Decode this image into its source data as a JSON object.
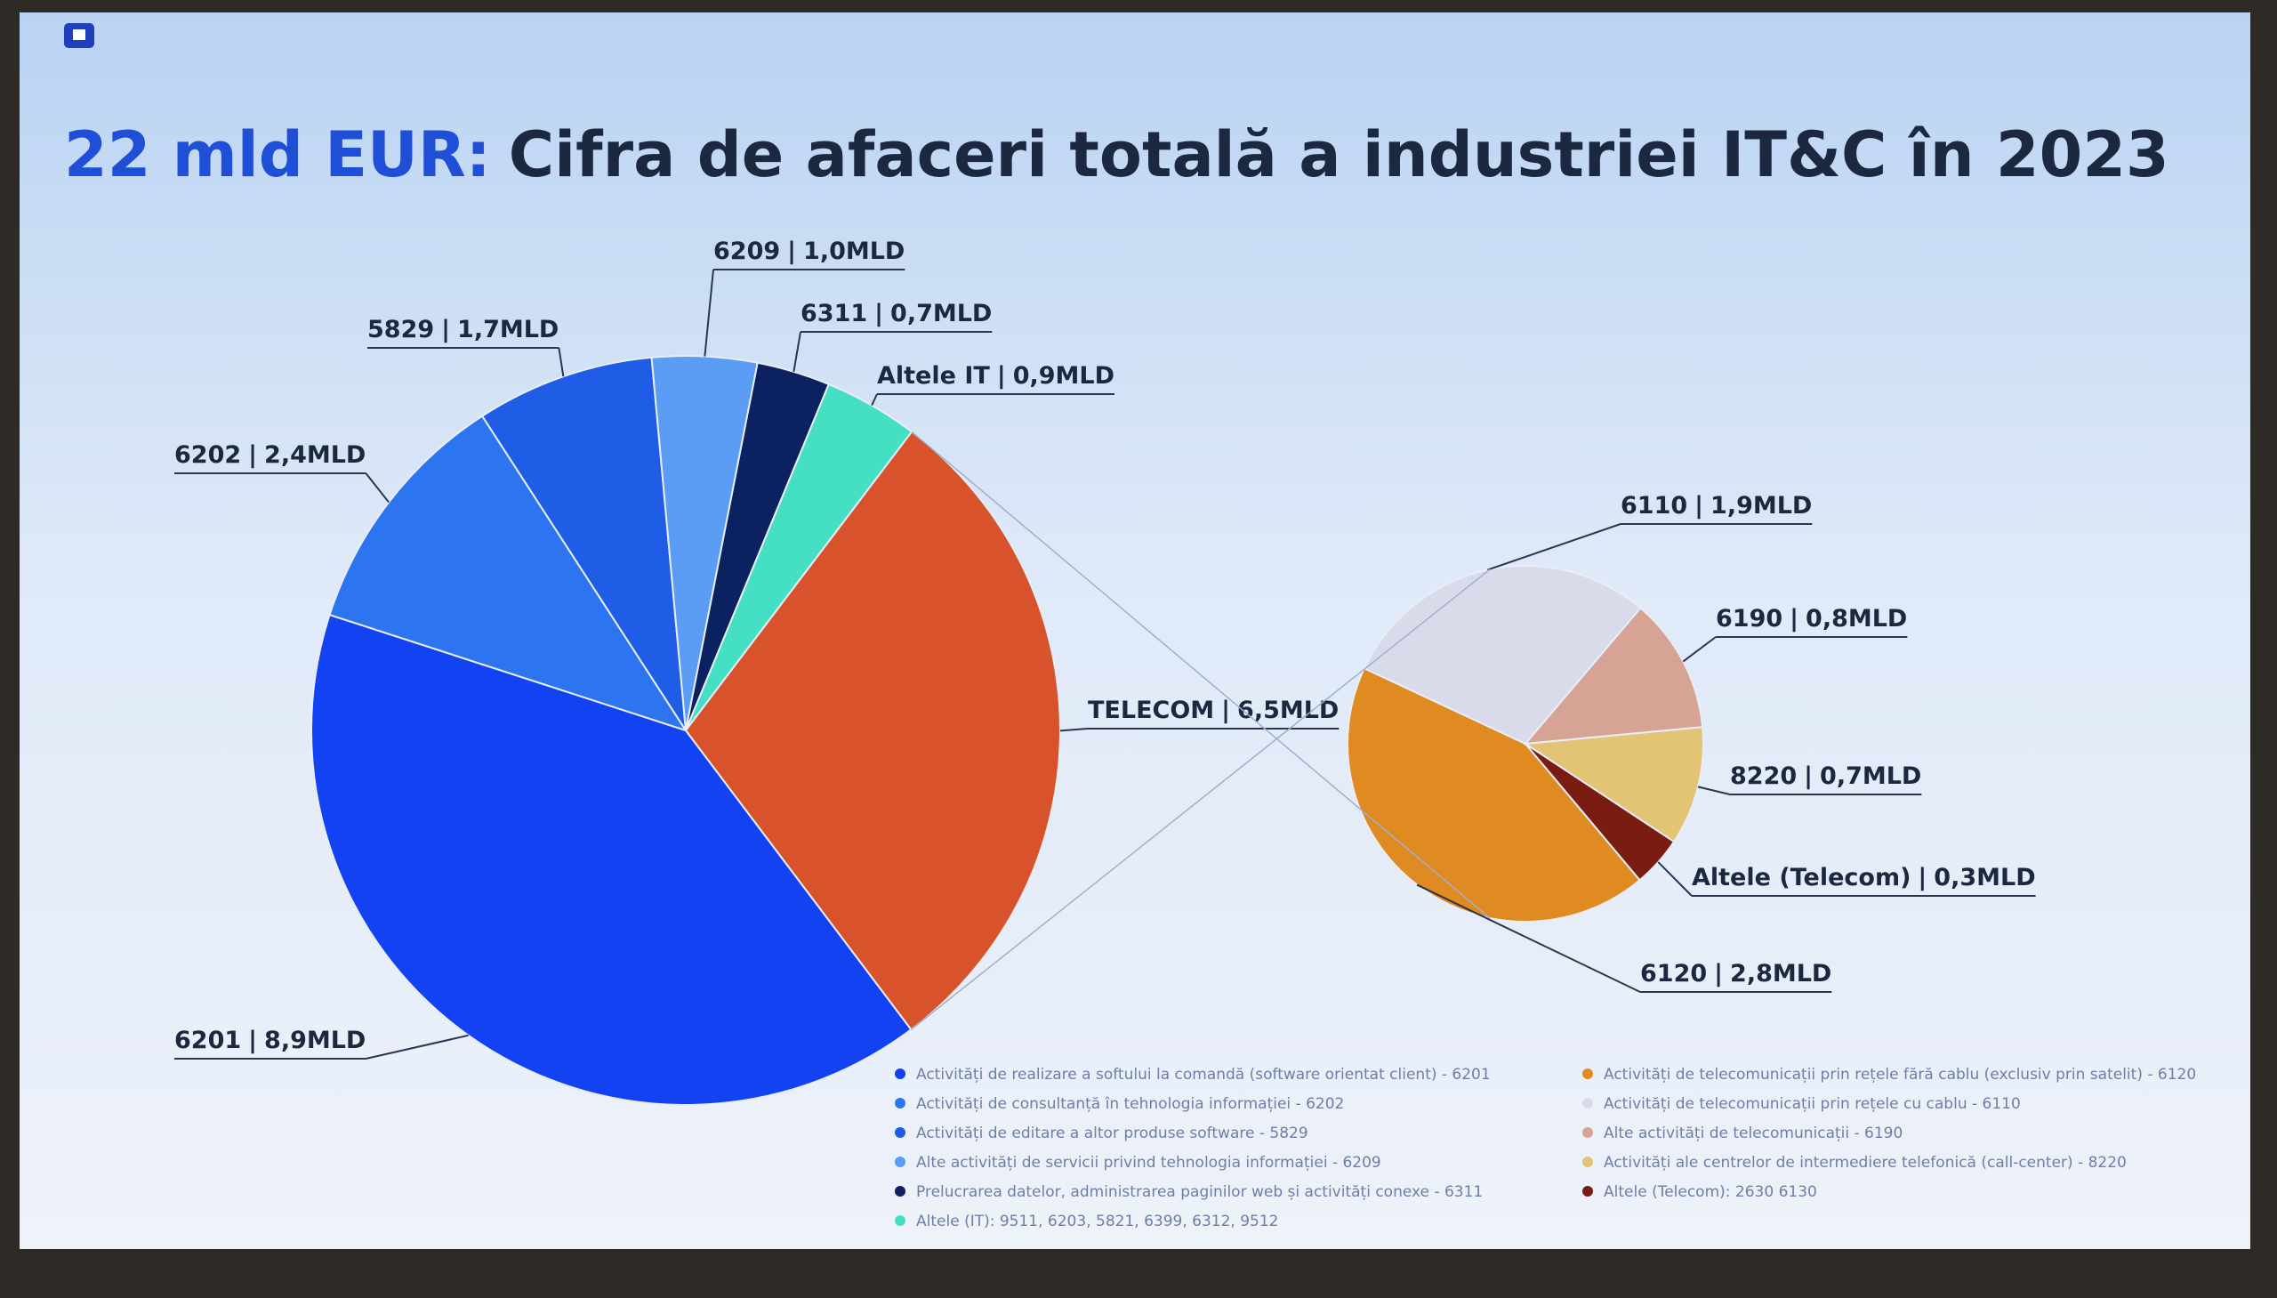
{
  "chart_data": {
    "type": "pie",
    "title_highlight": "22 mld EUR:",
    "title": "Cifra de afaceri totală a industriei IT&C în 2023",
    "separator": "|",
    "categories": [
      "6201",
      "6202",
      "5829",
      "6209",
      "6311",
      "Altele IT",
      "TELECOM"
    ],
    "values": [
      8.9,
      2.4,
      1.7,
      1.0,
      0.7,
      0.9,
      6.5
    ],
    "value_labels": [
      "8,9MLD",
      "2,4MLD",
      "1,7MLD",
      "1,0MLD",
      "0,7MLD",
      "0,9MLD",
      "6,5MLD"
    ],
    "colors": [
      "#1342f2",
      "#2d74f0",
      "#1f5de6",
      "#5b9cf5",
      "#0c2260",
      "#45e0c4",
      "#d8522b"
    ],
    "value_label_color": "#2a55d0",
    "legend": [
      "Activități de realizare a softului la comandă (software orientat client) - 6201",
      "Activități de consultanță în tehnologia informației - 6202",
      "Activități de editare a altor produse software - 5829",
      "Alte activități de servicii privind tehnologia informației - 6209",
      "Prelucrarea datelor, administrarea paginilor web și activități conexe - 6311",
      "Altele (IT): 9511, 6203, 5821, 6399, 6312, 9512"
    ],
    "breakdown": {
      "categories": [
        "6120",
        "6110",
        "6190",
        "8220",
        "Altele (Telecom)"
      ],
      "values": [
        2.8,
        1.9,
        0.8,
        0.7,
        0.3
      ],
      "value_labels": [
        "2,8MLD",
        "1,9MLD",
        "0,8MLD",
        "0,7MLD",
        "0,3MLD"
      ],
      "colors": [
        "#e08a22",
        "#d9dbea",
        "#d6a394",
        "#e2c474",
        "#7a1c12"
      ],
      "value_label_color": "#a4502f",
      "legend": [
        "Activități de telecomunicații prin rețele fără cablu (exclusiv prin satelit) - 6120",
        "Activități de telecomunicații prin rețele cu cablu - 6110",
        "Alte activități de telecomunicații - 6190",
        "Activități ale centrelor de intermediere telefonică (call-center) - 8220",
        "Altele (Telecom): 2630 6130"
      ]
    }
  }
}
